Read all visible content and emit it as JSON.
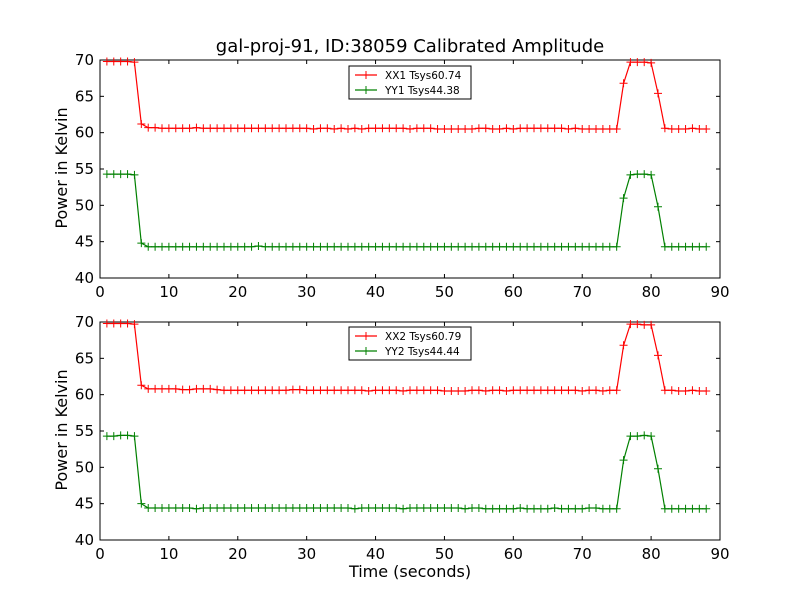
{
  "chart_data": [
    {
      "type": "line",
      "title": "gal-proj-91, ID:38059 Calibrated Amplitude",
      "xlabel": "",
      "ylabel": "Power in Kelvin",
      "xlim": [
        0,
        90
      ],
      "ylim": [
        40,
        70
      ],
      "xticks": [
        0,
        10,
        20,
        30,
        40,
        50,
        60,
        70,
        80,
        90
      ],
      "yticks": [
        40,
        45,
        50,
        55,
        60,
        65,
        70
      ],
      "legend_position": "top-center",
      "grid": false,
      "x": [
        1,
        2,
        3,
        4,
        5,
        6,
        7,
        8,
        9,
        10,
        11,
        12,
        13,
        14,
        15,
        16,
        17,
        18,
        19,
        20,
        21,
        22,
        23,
        24,
        25,
        26,
        27,
        28,
        29,
        30,
        31,
        32,
        33,
        34,
        35,
        36,
        37,
        38,
        39,
        40,
        41,
        42,
        43,
        44,
        45,
        46,
        47,
        48,
        49,
        50,
        51,
        52,
        53,
        54,
        55,
        56,
        57,
        58,
        59,
        60,
        61,
        62,
        63,
        64,
        65,
        66,
        67,
        68,
        69,
        70,
        71,
        72,
        73,
        74,
        75,
        76,
        77,
        78,
        79,
        80,
        81,
        82,
        83,
        84,
        85,
        86,
        87,
        88
      ],
      "series": [
        {
          "name": "XX1 Tsys60.74",
          "color": "#ff0000",
          "values": [
            69.8,
            69.8,
            69.8,
            69.8,
            69.7,
            61.2,
            60.7,
            60.7,
            60.6,
            60.6,
            60.6,
            60.6,
            60.6,
            60.7,
            60.6,
            60.6,
            60.6,
            60.6,
            60.6,
            60.6,
            60.6,
            60.6,
            60.6,
            60.6,
            60.6,
            60.6,
            60.6,
            60.6,
            60.6,
            60.6,
            60.5,
            60.6,
            60.6,
            60.5,
            60.6,
            60.5,
            60.6,
            60.5,
            60.6,
            60.6,
            60.6,
            60.6,
            60.6,
            60.6,
            60.5,
            60.6,
            60.6,
            60.6,
            60.5,
            60.5,
            60.5,
            60.5,
            60.5,
            60.5,
            60.6,
            60.6,
            60.5,
            60.5,
            60.6,
            60.5,
            60.6,
            60.6,
            60.6,
            60.6,
            60.6,
            60.6,
            60.6,
            60.5,
            60.6,
            60.5,
            60.5,
            60.5,
            60.5,
            60.5,
            60.5,
            66.8,
            69.7,
            69.7,
            69.7,
            69.6,
            65.4,
            60.6,
            60.5,
            60.5,
            60.5,
            60.6,
            60.5,
            60.5
          ]
        },
        {
          "name": "YY1 Tsys44.38",
          "color": "#008000",
          "values": [
            54.3,
            54.3,
            54.3,
            54.3,
            54.2,
            44.8,
            44.3,
            44.3,
            44.3,
            44.3,
            44.3,
            44.3,
            44.3,
            44.3,
            44.3,
            44.3,
            44.3,
            44.3,
            44.3,
            44.3,
            44.3,
            44.3,
            44.4,
            44.3,
            44.3,
            44.3,
            44.3,
            44.3,
            44.3,
            44.3,
            44.3,
            44.3,
            44.3,
            44.3,
            44.3,
            44.3,
            44.3,
            44.3,
            44.3,
            44.3,
            44.3,
            44.3,
            44.3,
            44.3,
            44.3,
            44.3,
            44.3,
            44.3,
            44.3,
            44.3,
            44.3,
            44.3,
            44.3,
            44.3,
            44.3,
            44.3,
            44.3,
            44.3,
            44.3,
            44.3,
            44.3,
            44.3,
            44.3,
            44.3,
            44.3,
            44.3,
            44.3,
            44.3,
            44.3,
            44.3,
            44.3,
            44.3,
            44.3,
            44.3,
            44.3,
            51.0,
            54.2,
            54.3,
            54.3,
            54.2,
            49.8,
            44.3,
            44.3,
            44.3,
            44.3,
            44.3,
            44.3,
            44.3
          ]
        }
      ]
    },
    {
      "type": "line",
      "title": "",
      "xlabel": "Time (seconds)",
      "ylabel": "Power in Kelvin",
      "xlim": [
        0,
        90
      ],
      "ylim": [
        40,
        70
      ],
      "xticks": [
        0,
        10,
        20,
        30,
        40,
        50,
        60,
        70,
        80,
        90
      ],
      "yticks": [
        40,
        45,
        50,
        55,
        60,
        65,
        70
      ],
      "legend_position": "top-center",
      "grid": false,
      "x": [
        1,
        2,
        3,
        4,
        5,
        6,
        7,
        8,
        9,
        10,
        11,
        12,
        13,
        14,
        15,
        16,
        17,
        18,
        19,
        20,
        21,
        22,
        23,
        24,
        25,
        26,
        27,
        28,
        29,
        30,
        31,
        32,
        33,
        34,
        35,
        36,
        37,
        38,
        39,
        40,
        41,
        42,
        43,
        44,
        45,
        46,
        47,
        48,
        49,
        50,
        51,
        52,
        53,
        54,
        55,
        56,
        57,
        58,
        59,
        60,
        61,
        62,
        63,
        64,
        65,
        66,
        67,
        68,
        69,
        70,
        71,
        72,
        73,
        74,
        75,
        76,
        77,
        78,
        79,
        80,
        81,
        82,
        83,
        84,
        85,
        86,
        87,
        88
      ],
      "series": [
        {
          "name": "XX2 Tsys60.79",
          "color": "#ff0000",
          "values": [
            69.8,
            69.8,
            69.8,
            69.8,
            69.7,
            61.3,
            60.8,
            60.8,
            60.8,
            60.8,
            60.8,
            60.7,
            60.7,
            60.8,
            60.8,
            60.8,
            60.7,
            60.6,
            60.6,
            60.6,
            60.6,
            60.6,
            60.6,
            60.6,
            60.6,
            60.6,
            60.6,
            60.7,
            60.7,
            60.6,
            60.6,
            60.6,
            60.6,
            60.6,
            60.6,
            60.6,
            60.6,
            60.6,
            60.5,
            60.6,
            60.6,
            60.6,
            60.6,
            60.5,
            60.6,
            60.6,
            60.6,
            60.6,
            60.6,
            60.5,
            60.5,
            60.5,
            60.5,
            60.6,
            60.6,
            60.5,
            60.6,
            60.6,
            60.5,
            60.6,
            60.6,
            60.6,
            60.6,
            60.6,
            60.6,
            60.6,
            60.6,
            60.6,
            60.6,
            60.5,
            60.6,
            60.6,
            60.5,
            60.6,
            60.6,
            66.8,
            69.7,
            69.7,
            69.6,
            69.6,
            65.4,
            60.6,
            60.6,
            60.5,
            60.5,
            60.6,
            60.5,
            60.5
          ]
        },
        {
          "name": "YY2 Tsys44.44",
          "color": "#008000",
          "values": [
            54.3,
            54.3,
            54.4,
            54.4,
            54.3,
            45.0,
            44.4,
            44.4,
            44.4,
            44.4,
            44.4,
            44.4,
            44.4,
            44.3,
            44.4,
            44.4,
            44.4,
            44.4,
            44.4,
            44.4,
            44.4,
            44.4,
            44.4,
            44.4,
            44.4,
            44.4,
            44.4,
            44.4,
            44.4,
            44.4,
            44.4,
            44.4,
            44.4,
            44.4,
            44.4,
            44.4,
            44.3,
            44.4,
            44.4,
            44.4,
            44.4,
            44.4,
            44.4,
            44.3,
            44.4,
            44.4,
            44.4,
            44.4,
            44.4,
            44.4,
            44.4,
            44.4,
            44.3,
            44.4,
            44.4,
            44.3,
            44.3,
            44.3,
            44.3,
            44.3,
            44.4,
            44.3,
            44.3,
            44.3,
            44.3,
            44.4,
            44.3,
            44.3,
            44.3,
            44.3,
            44.4,
            44.4,
            44.3,
            44.3,
            44.3,
            51.0,
            54.3,
            54.3,
            54.4,
            54.3,
            49.8,
            44.3,
            44.3,
            44.3,
            44.3,
            44.3,
            44.3,
            44.3
          ]
        }
      ]
    }
  ]
}
